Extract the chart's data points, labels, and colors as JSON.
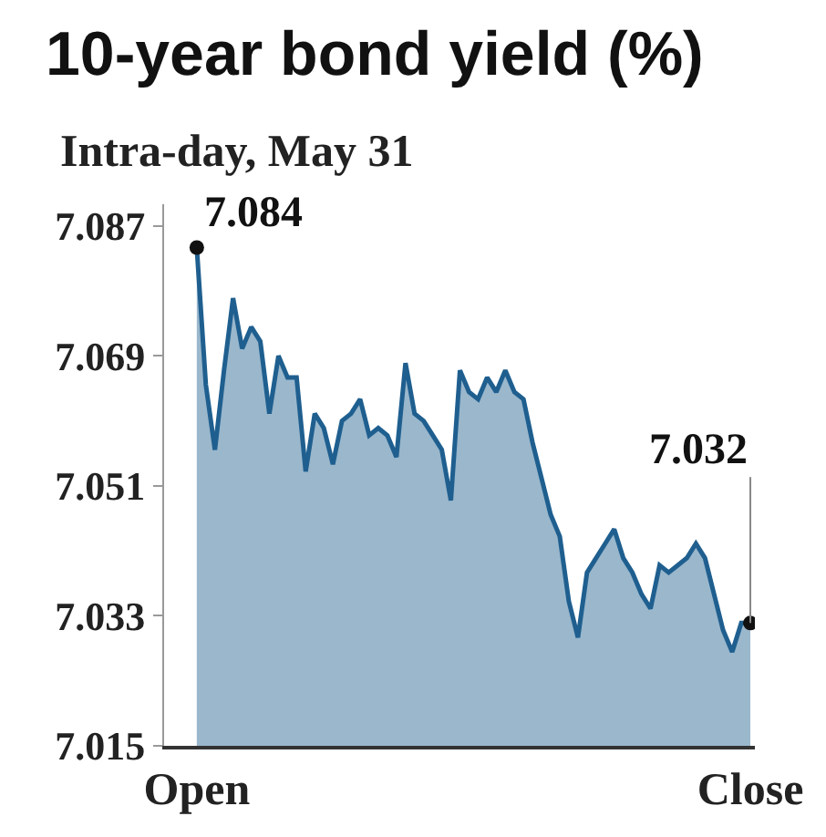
{
  "chart_data": {
    "type": "area",
    "title": "10-year bond yield (%)",
    "subtitle": "Intra-day, May 31",
    "categories": [
      "Open",
      null,
      null,
      null,
      null,
      null,
      null,
      null,
      null,
      null,
      null,
      null,
      null,
      null,
      null,
      null,
      null,
      null,
      null,
      null,
      null,
      null,
      null,
      null,
      null,
      null,
      null,
      null,
      null,
      null,
      null,
      null,
      null,
      null,
      null,
      null,
      null,
      null,
      null,
      null,
      null,
      null,
      null,
      null,
      null,
      null,
      null,
      null,
      null,
      null,
      null,
      null,
      null,
      null,
      null,
      null,
      null,
      null,
      null,
      null,
      null,
      "Close"
    ],
    "series": [
      {
        "color": "#1f5f8f",
        "values": [
          7.084,
          7.065,
          7.056,
          7.067,
          7.077,
          7.07,
          7.073,
          7.071,
          7.061,
          7.069,
          7.066,
          7.066,
          7.053,
          7.061,
          7.059,
          7.054,
          7.06,
          7.061,
          7.063,
          7.058,
          7.059,
          7.058,
          7.055,
          7.068,
          7.061,
          7.06,
          7.058,
          7.056,
          7.049,
          7.067,
          7.064,
          7.063,
          7.066,
          7.064,
          7.067,
          7.064,
          7.063,
          7.057,
          7.052,
          7.047,
          7.044,
          7.035,
          7.03,
          7.039,
          7.041,
          7.043,
          7.045,
          7.041,
          7.039,
          7.036,
          7.034,
          7.04,
          7.039,
          7.04,
          7.041,
          7.043,
          7.041,
          7.036,
          7.031,
          7.028,
          7.032,
          7.032
        ]
      }
    ],
    "ylim": [
      7.015,
      7.09
    ],
    "yticks": [
      7.087,
      7.069,
      7.051,
      7.033,
      7.015
    ],
    "annotations": [
      {
        "text": "7.084",
        "x": "Open",
        "y": 7.084
      },
      {
        "text": "7.032",
        "x": "Close",
        "y": 7.032
      }
    ],
    "legend": false
  }
}
